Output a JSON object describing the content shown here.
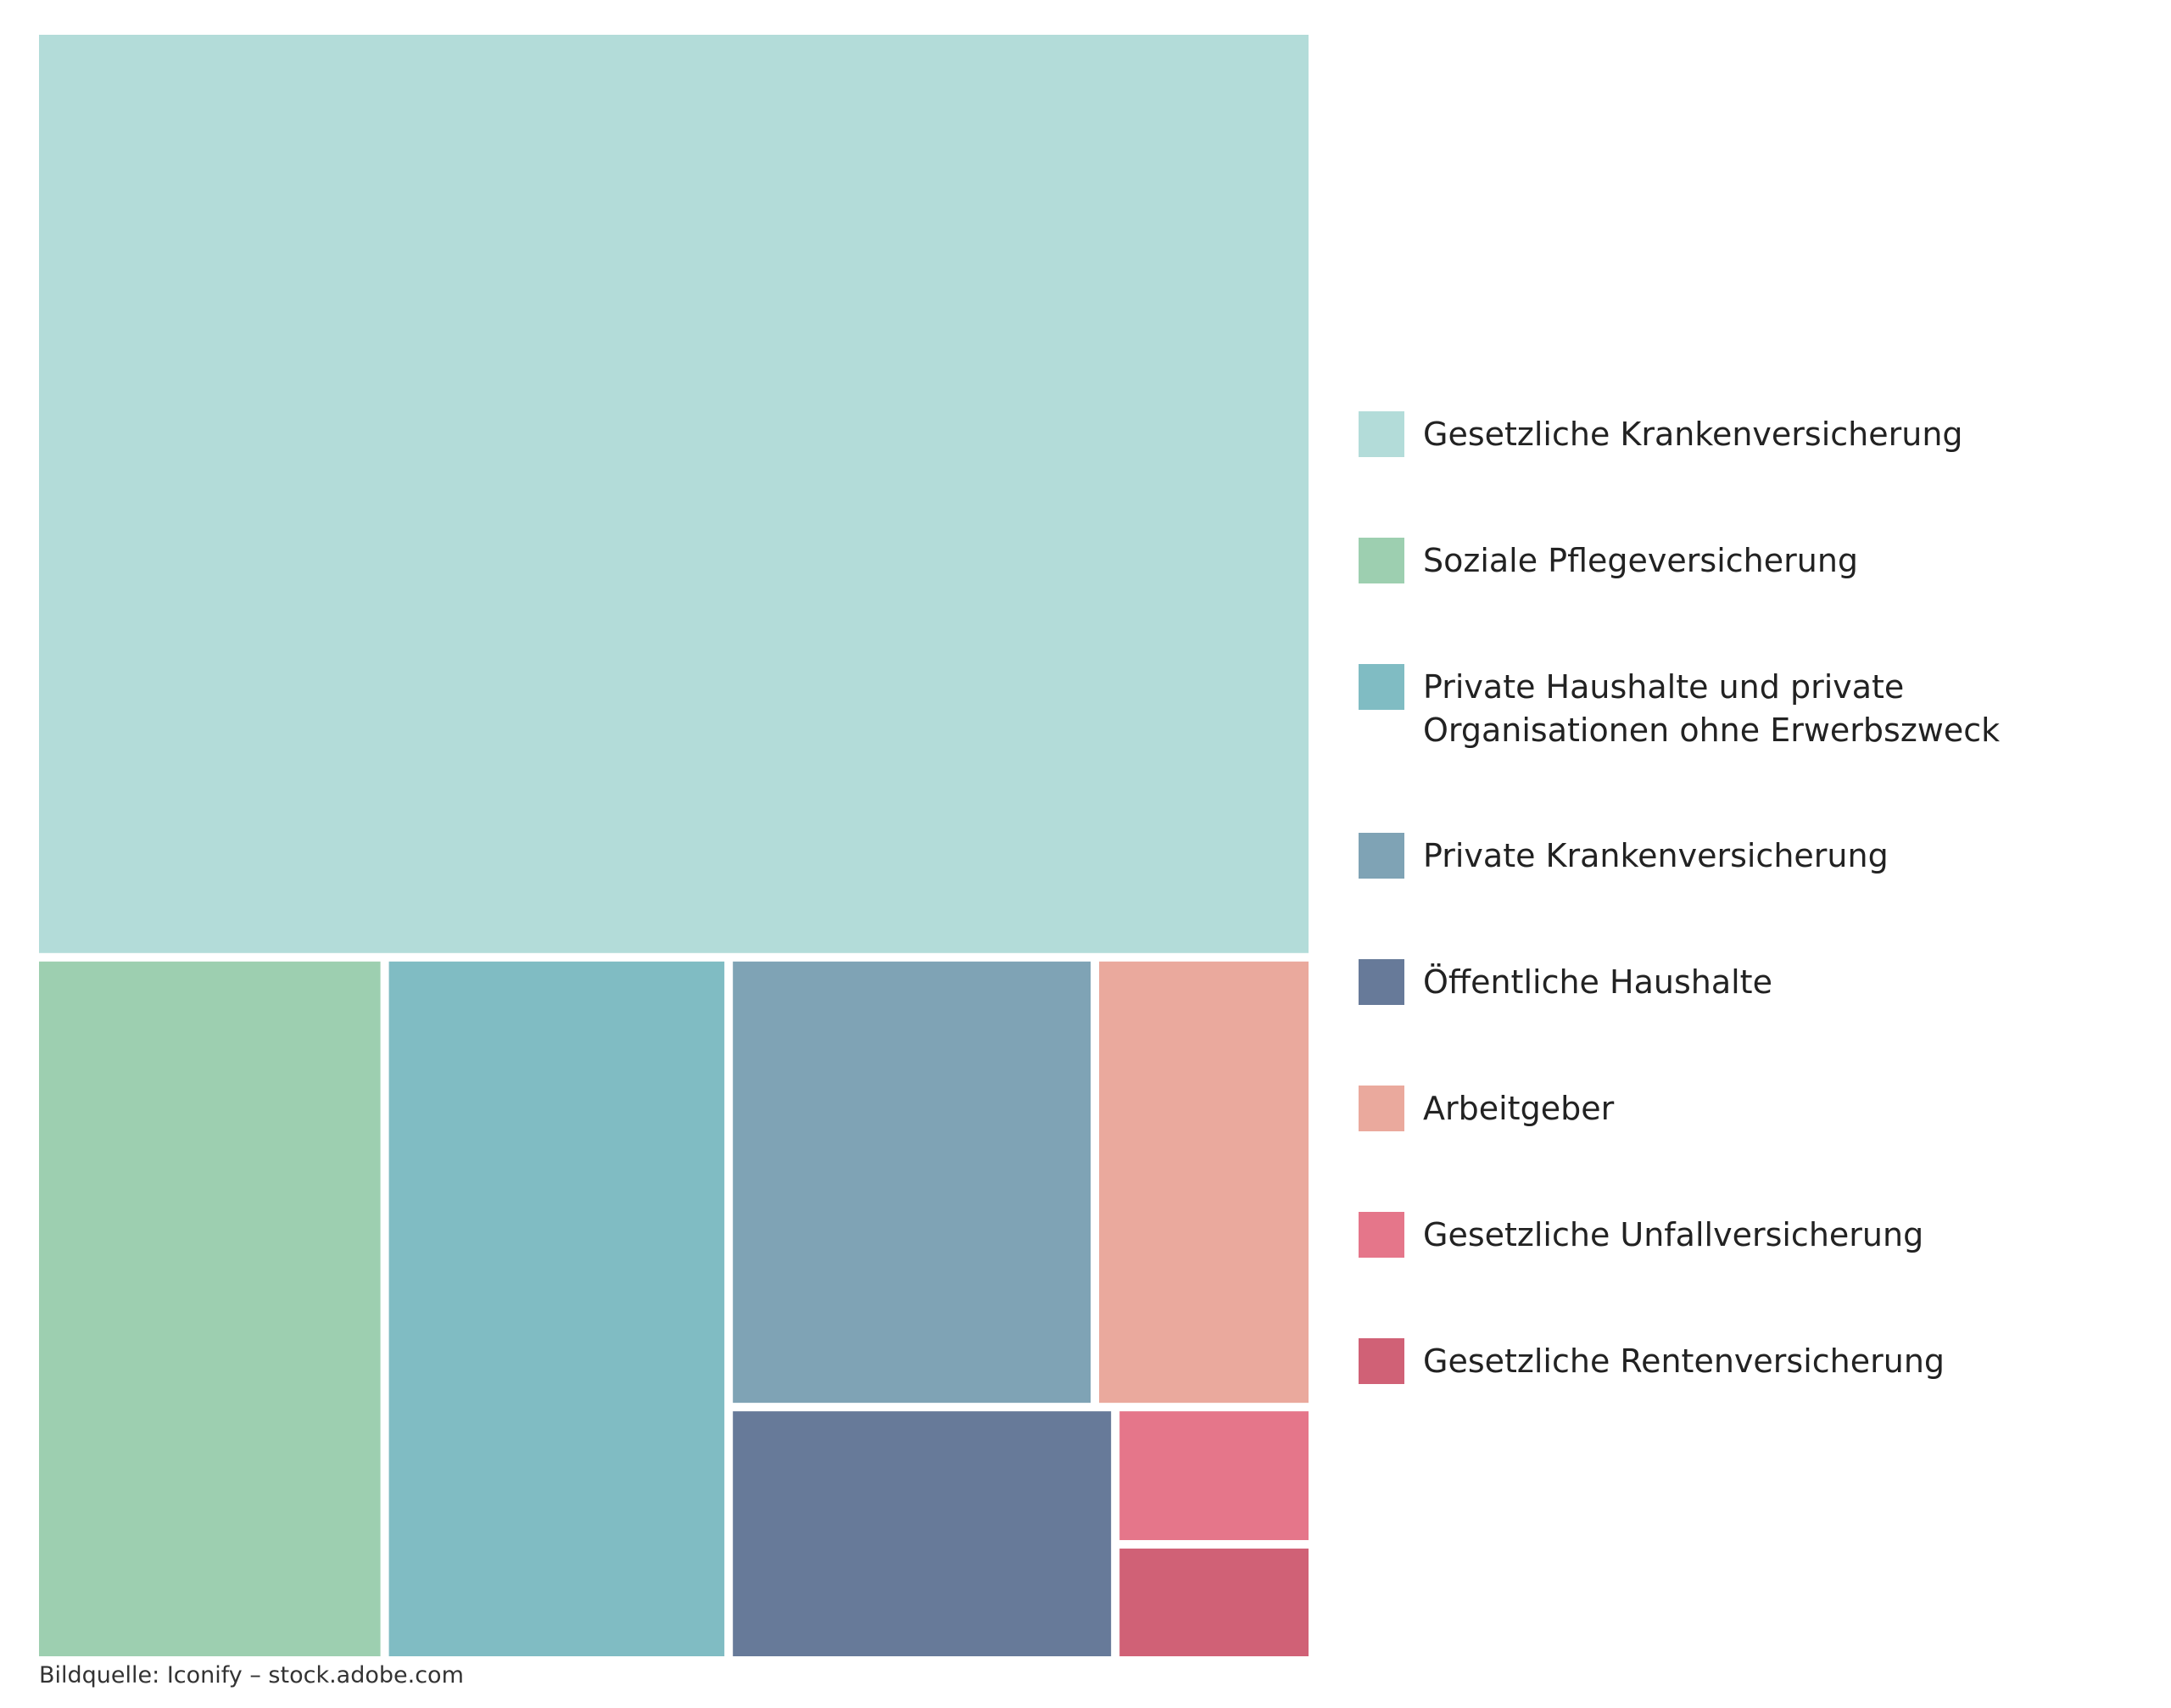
{
  "chart_data": {
    "type": "treemap",
    "categories": [
      "Gesetzliche Krankenversicherung",
      "Soziale Pflegeversicherung",
      "Private Haushalte und private Organisationen ohne Erwerbszweck",
      "Private Krankenversicherung",
      "Öffentliche Haushalte",
      "Arbeitgeber",
      "Gesetzliche Unfallversicherung",
      "Gesetzliche Rentenversicherung"
    ],
    "values": [
      56.8,
      11.8,
      11.6,
      7.9,
      4.7,
      4.7,
      1.3,
      1.1
    ],
    "colors": [
      "#b3dcd9",
      "#9dcfb0",
      "#80bcc3",
      "#7fa3b5",
      "#677a99",
      "#eaa99d",
      "#e5768a",
      "#d06176"
    ],
    "source": "Bildquelle: Iconify – stock.adobe.com"
  }
}
